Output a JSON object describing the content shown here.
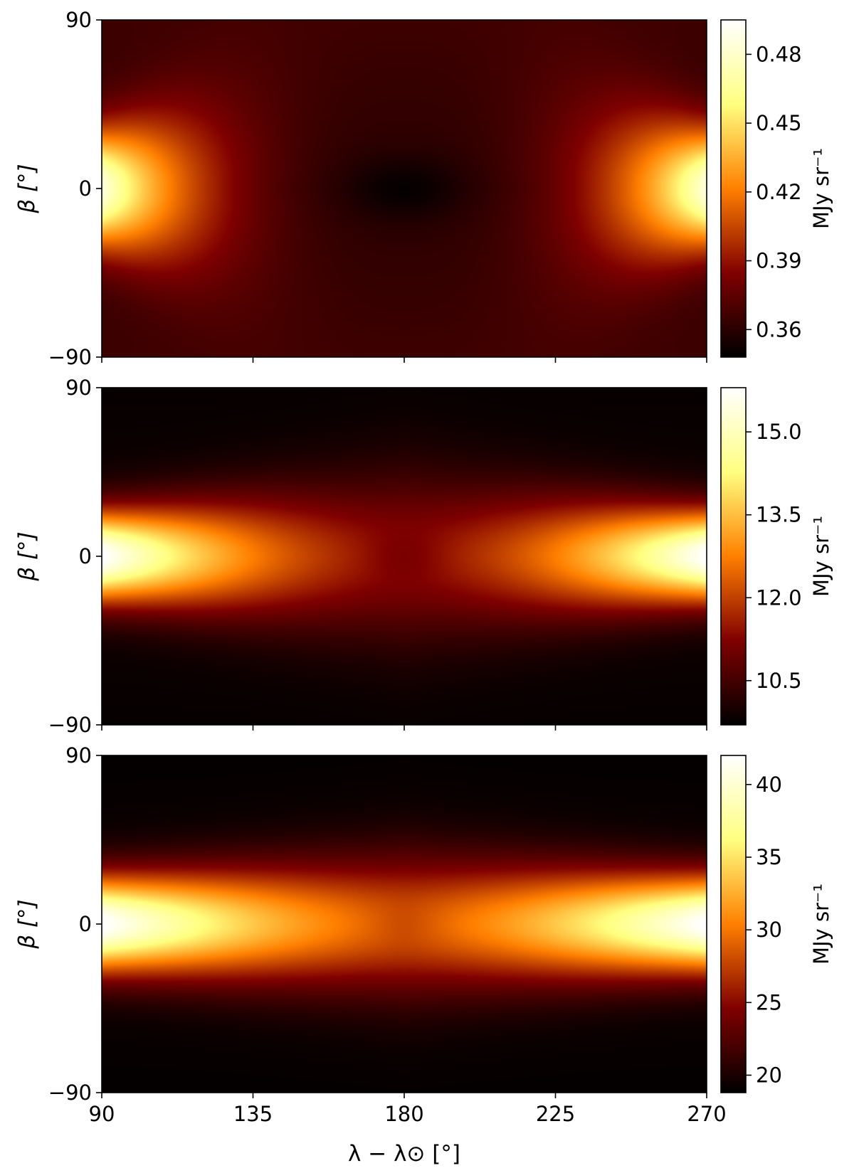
{
  "figure": {
    "xlabel": "λ − λ⊙ [°]",
    "x_tick_labels": [
      "90",
      "135",
      "180",
      "225",
      "270"
    ]
  },
  "chart_data": [
    {
      "type": "heatmap",
      "panel": 1,
      "x_range": [
        90,
        270
      ],
      "y_range": [
        -90,
        90
      ],
      "x_ticks": [
        90,
        135,
        180,
        225,
        270
      ],
      "y_ticks": [
        -90,
        0,
        90
      ],
      "y_tick_labels": [
        "−90",
        "0",
        "90"
      ],
      "ylabel": "β [°]",
      "colorbar_label": "MJy sr⁻¹",
      "colorbar_range": [
        0.348,
        0.495
      ],
      "colorbar_ticks": [
        0.36,
        0.39,
        0.42,
        0.45,
        0.48
      ],
      "colorbar_tick_labels": [
        "0.36",
        "0.39",
        "0.42",
        "0.45",
        "0.48"
      ],
      "colormap": "afmhot",
      "peak_location": {
        "lambda": [
          90,
          270
        ],
        "beta": 0
      },
      "minimum_location": {
        "lambda": 180,
        "beta": 0
      }
    },
    {
      "type": "heatmap",
      "panel": 2,
      "x_range": [
        90,
        270
      ],
      "y_range": [
        -90,
        90
      ],
      "x_ticks": [
        90,
        135,
        180,
        225,
        270
      ],
      "y_ticks": [
        -90,
        0,
        90
      ],
      "y_tick_labels": [
        "−90",
        "0",
        "90"
      ],
      "ylabel": "β [°]",
      "colorbar_label": "MJy sr⁻¹",
      "colorbar_range": [
        9.7,
        15.8
      ],
      "colorbar_ticks": [
        10.5,
        12.0,
        13.5,
        15.0
      ],
      "colorbar_tick_labels": [
        "10.5",
        "12.0",
        "13.5",
        "15.0"
      ],
      "colormap": "afmhot",
      "peak_location": {
        "lambda": [
          90,
          270
        ],
        "beta": 0
      },
      "minimum_location": {
        "lambda": 180,
        "beta": [
          -70,
          70
        ]
      }
    },
    {
      "type": "heatmap",
      "panel": 3,
      "x_range": [
        90,
        270
      ],
      "y_range": [
        -90,
        90
      ],
      "x_ticks": [
        90,
        135,
        180,
        225,
        270
      ],
      "y_ticks": [
        -90,
        0,
        90
      ],
      "y_tick_labels": [
        "−90",
        "0",
        "90"
      ],
      "ylabel": "β [°]",
      "colorbar_label": "MJy sr⁻¹",
      "colorbar_range": [
        18.8,
        42.0
      ],
      "colorbar_ticks": [
        20,
        25,
        30,
        35,
        40
      ],
      "colorbar_tick_labels": [
        "20",
        "25",
        "30",
        "35",
        "40"
      ],
      "colormap": "afmhot",
      "peak_location": {
        "lambda": [
          90,
          270
        ],
        "beta": 0
      },
      "minimum_location": {
        "lambda": 180,
        "beta": [
          -70,
          70
        ]
      }
    }
  ]
}
